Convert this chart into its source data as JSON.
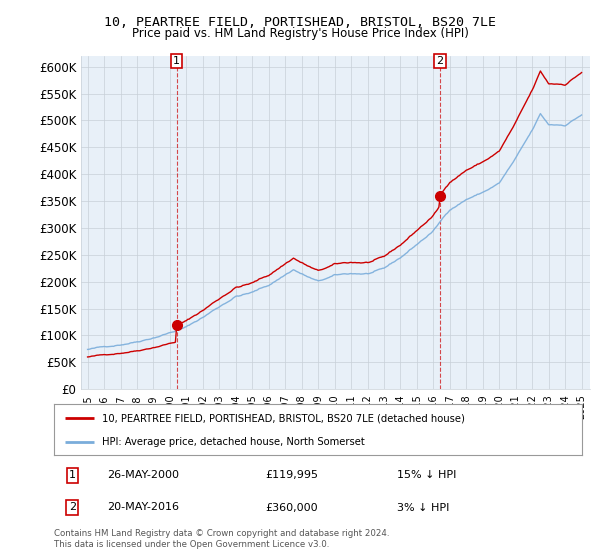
{
  "title": "10, PEARTREE FIELD, PORTISHEAD, BRISTOL, BS20 7LE",
  "subtitle": "Price paid vs. HM Land Registry's House Price Index (HPI)",
  "legend_line1": "10, PEARTREE FIELD, PORTISHEAD, BRISTOL, BS20 7LE (detached house)",
  "legend_line2": "HPI: Average price, detached house, North Somerset",
  "annotation1_date": "26-MAY-2000",
  "annotation1_price": "£119,995",
  "annotation1_hpi": "15% ↓ HPI",
  "annotation2_date": "20-MAY-2016",
  "annotation2_price": "£360,000",
  "annotation2_hpi": "3% ↓ HPI",
  "footnote": "Contains HM Land Registry data © Crown copyright and database right 2024.\nThis data is licensed under the Open Government Licence v3.0.",
  "red_color": "#cc0000",
  "blue_color": "#7aaddb",
  "chart_bg": "#e8f0f8",
  "background_color": "#ffffff",
  "grid_color": "#c8d0d8",
  "ylim": [
    0,
    620000
  ],
  "yticks": [
    0,
    50000,
    100000,
    150000,
    200000,
    250000,
    300000,
    350000,
    400000,
    450000,
    500000,
    550000,
    600000
  ],
  "point1_year": 2000.4,
  "point1_value": 119995,
  "point2_year": 2016.4,
  "point2_value": 360000,
  "vline1_year": 2000.4,
  "vline2_year": 2016.4
}
